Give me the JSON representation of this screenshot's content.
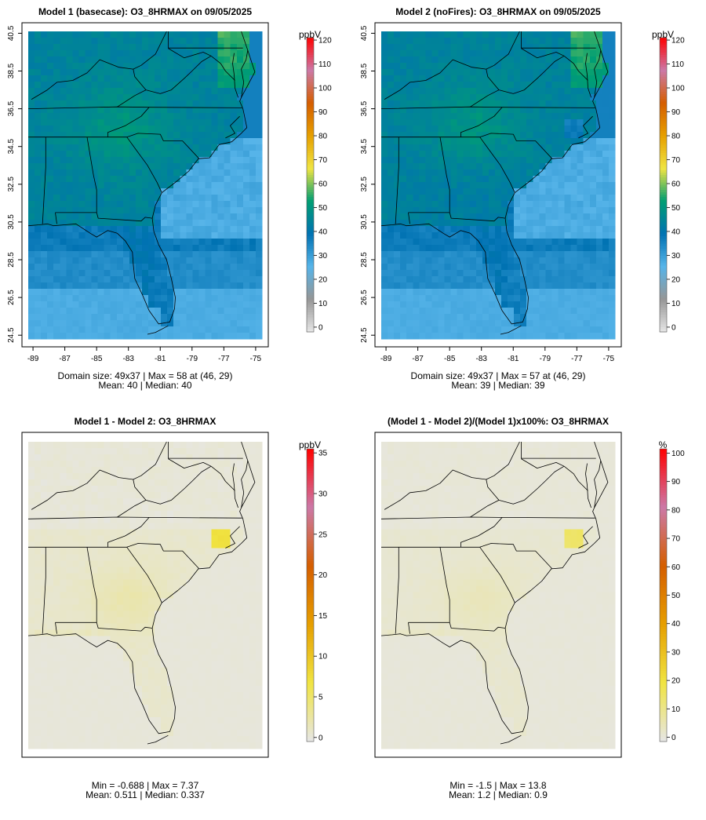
{
  "chart_data": [
    {
      "type": "heatmap",
      "title": "Model 1 (basecase): O3_8HRMAX on 09/05/2025",
      "x_ticks": [
        "-89",
        "-87",
        "-85",
        "-83",
        "-81",
        "-79",
        "-77",
        "-75"
      ],
      "y_ticks": [
        "24.5",
        "26.5",
        "28.5",
        "30.5",
        "32.5",
        "34.5",
        "36.5",
        "38.5",
        "40.5"
      ],
      "xlim": [
        -89.3,
        -74.6
      ],
      "ylim": [
        24.3,
        40.6
      ],
      "colorbar": {
        "unit": "ppbV",
        "range": [
          -2,
          121
        ],
        "ticks": [
          "0",
          "10",
          "20",
          "30",
          "40",
          "50",
          "60",
          "70",
          "80",
          "90",
          "100",
          "110",
          "120"
        ]
      },
      "palette": [
        "#e6e6e6",
        "#969696",
        "#56b4e9",
        "#0072b2",
        "#009e73",
        "#f0e442",
        "#e69f00",
        "#d55e00",
        "#cc79a7",
        "#ff0000"
      ],
      "field": "base",
      "caption": [
        "Domain size: 49x37 | Max = 58 at (46, 29)",
        "Mean: 40 |  Median: 40"
      ]
    },
    {
      "type": "heatmap",
      "title": "Model 2 (noFires): O3_8HRMAX on 09/05/2025",
      "x_ticks": [
        "-89",
        "-87",
        "-85",
        "-83",
        "-81",
        "-79",
        "-77",
        "-75"
      ],
      "y_ticks": [
        "24.5",
        "26.5",
        "28.5",
        "30.5",
        "32.5",
        "34.5",
        "36.5",
        "38.5",
        "40.5"
      ],
      "xlim": [
        -89.3,
        -74.6
      ],
      "ylim": [
        24.3,
        40.6
      ],
      "colorbar": {
        "unit": "ppbV",
        "range": [
          -2,
          121
        ],
        "ticks": [
          "0",
          "10",
          "20",
          "30",
          "40",
          "50",
          "60",
          "70",
          "80",
          "90",
          "100",
          "110",
          "120"
        ]
      },
      "palette": [
        "#e6e6e6",
        "#969696",
        "#56b4e9",
        "#0072b2",
        "#009e73",
        "#f0e442",
        "#e69f00",
        "#d55e00",
        "#cc79a7",
        "#ff0000"
      ],
      "field": "nofire",
      "caption": [
        "Domain size: 49x37 | Max = 57 at (46, 29)",
        "Mean: 39 |  Median: 39"
      ]
    },
    {
      "type": "heatmap",
      "title": "Model 1 - Model 2: O3_8HRMAX",
      "x_ticks": [],
      "y_ticks": [],
      "xlim": [
        -89.3,
        -74.6
      ],
      "ylim": [
        24.3,
        40.6
      ],
      "colorbar": {
        "unit": "ppbV",
        "range": [
          -0.5,
          35.5
        ],
        "ticks": [
          "0",
          "5",
          "10",
          "15",
          "20",
          "25",
          "30",
          "35"
        ]
      },
      "palette": [
        "#e6e6e6",
        "#f0e442",
        "#e69f00",
        "#d55e00",
        "#cc79a7",
        "#ff0000"
      ],
      "field": "diff",
      "caption": [
        "Min = -0.688 | Max = 7.37",
        "Mean: 0.511 |  Median: 0.337"
      ]
    },
    {
      "type": "heatmap",
      "title": "(Model 1 - Model 2)/(Model 1)x100%: O3_8HRMAX",
      "x_ticks": [],
      "y_ticks": [],
      "xlim": [
        -89.3,
        -74.6
      ],
      "ylim": [
        24.3,
        40.6
      ],
      "colorbar": {
        "unit": "%",
        "range": [
          -1.5,
          101.5
        ],
        "ticks": [
          "0",
          "10",
          "20",
          "30",
          "40",
          "50",
          "60",
          "70",
          "80",
          "90",
          "100"
        ]
      },
      "palette": [
        "#e6e6e6",
        "#f0e442",
        "#e69f00",
        "#d55e00",
        "#cc79a7",
        "#ff0000"
      ],
      "field": "pct",
      "caption": [
        "Min = -1.5 | Max = 13.8",
        "Mean: 1.2 |  Median: 0.9"
      ]
    }
  ],
  "map_lines": [
    {
      "name": "coastline",
      "coords": [
        [
          -75.9,
          40.6
        ],
        [
          -75.5,
          39.6
        ],
        [
          -75.05,
          38.45
        ],
        [
          -75.9,
          37.1
        ],
        [
          -76.0,
          36.9
        ],
        [
          -75.8,
          36.5
        ],
        [
          -75.55,
          35.5
        ],
        [
          -75.9,
          35.2
        ],
        [
          -76.5,
          34.75
        ],
        [
          -77.3,
          34.6
        ],
        [
          -77.9,
          33.9
        ],
        [
          -78.6,
          33.85
        ],
        [
          -79.2,
          33.2
        ],
        [
          -79.9,
          32.7
        ],
        [
          -80.9,
          32.05
        ],
        [
          -81.3,
          31.4
        ],
        [
          -81.5,
          30.7
        ],
        [
          -81.4,
          30.0
        ],
        [
          -81.1,
          29.3
        ],
        [
          -80.6,
          28.5
        ],
        [
          -80.3,
          27.5
        ],
        [
          -80.05,
          26.5
        ],
        [
          -80.1,
          25.9
        ],
        [
          -80.4,
          25.2
        ],
        [
          -81.1,
          25.1
        ],
        [
          -81.7,
          25.8
        ],
        [
          -82.1,
          26.6
        ],
        [
          -82.6,
          27.5
        ],
        [
          -82.7,
          28.3
        ],
        [
          -82.75,
          28.9
        ],
        [
          -83.2,
          29.5
        ],
        [
          -83.7,
          29.9
        ],
        [
          -84.3,
          30.05
        ],
        [
          -85.0,
          29.7
        ],
        [
          -85.4,
          29.9
        ],
        [
          -86.3,
          30.4
        ],
        [
          -87.0,
          30.35
        ],
        [
          -87.7,
          30.3
        ],
        [
          -88.1,
          30.4
        ],
        [
          -88.6,
          30.35
        ],
        [
          -89.3,
          30.3
        ]
      ]
    },
    {
      "name": "chesapeake-bay",
      "coords": [
        [
          -76.35,
          39.45
        ],
        [
          -76.45,
          38.9
        ],
        [
          -76.35,
          38.3
        ],
        [
          -76.3,
          37.6
        ],
        [
          -76.1,
          37.1
        ]
      ]
    },
    {
      "name": "delmarva-bay-shore",
      "coords": [
        [
          -75.9,
          37.1
        ],
        [
          -75.75,
          37.9
        ],
        [
          -75.9,
          38.6
        ],
        [
          -75.6,
          39.1
        ],
        [
          -75.5,
          39.6
        ]
      ]
    },
    {
      "name": "pamlico-sound",
      "coords": [
        [
          -76.0,
          36.1
        ],
        [
          -76.6,
          35.6
        ],
        [
          -76.3,
          35.2
        ],
        [
          -76.9,
          34.95
        ]
      ]
    },
    {
      "name": "potomac-border",
      "coords": [
        [
          -77.8,
          39.3
        ],
        [
          -77.2,
          38.9
        ],
        [
          -76.9,
          38.5
        ],
        [
          -76.3,
          38.0
        ]
      ]
    },
    {
      "name": "va-nc-tn-border",
      "coords": [
        [
          -75.85,
          36.55
        ],
        [
          -81.7,
          36.58
        ],
        [
          -83.7,
          36.6
        ],
        [
          -89.3,
          36.5
        ]
      ]
    },
    {
      "name": "va-ky-border",
      "coords": [
        [
          -83.7,
          36.6
        ],
        [
          -82.6,
          37.2
        ],
        [
          -81.9,
          37.5
        ]
      ]
    },
    {
      "name": "wv-ky-border",
      "coords": [
        [
          -81.9,
          37.5
        ],
        [
          -82.6,
          38.2
        ],
        [
          -82.7,
          38.6
        ]
      ]
    },
    {
      "name": "va-wv-border",
      "coords": [
        [
          -77.8,
          39.3
        ],
        [
          -78.4,
          39.0
        ],
        [
          -79.0,
          38.5
        ],
        [
          -79.5,
          38.1
        ],
        [
          -80.3,
          37.5
        ],
        [
          -81.0,
          37.3
        ],
        [
          -81.9,
          37.5
        ]
      ]
    },
    {
      "name": "ohio-river",
      "coords": [
        [
          -80.6,
          40.6
        ],
        [
          -81.3,
          39.4
        ],
        [
          -82.2,
          38.8
        ],
        [
          -82.7,
          38.6
        ],
        [
          -83.6,
          38.7
        ],
        [
          -84.8,
          39.1
        ],
        [
          -85.6,
          38.4
        ],
        [
          -86.5,
          38.0
        ],
        [
          -87.5,
          37.9
        ],
        [
          -88.1,
          37.5
        ],
        [
          -89.1,
          37.0
        ]
      ]
    },
    {
      "name": "wv-md-border",
      "coords": [
        [
          -80.5,
          39.7
        ],
        [
          -79.5,
          39.2
        ],
        [
          -78.3,
          39.5
        ],
        [
          -77.8,
          39.3
        ]
      ]
    },
    {
      "name": "md-pa-border",
      "coords": [
        [
          -80.5,
          39.72
        ],
        [
          -75.8,
          39.72
        ]
      ]
    },
    {
      "name": "wv-pa-border",
      "coords": [
        [
          -80.5,
          39.72
        ],
        [
          -80.5,
          40.6
        ]
      ]
    },
    {
      "name": "tn-ga-al-border",
      "coords": [
        [
          -89.3,
          35.0
        ],
        [
          -85.6,
          35.0
        ],
        [
          -83.1,
          35.0
        ],
        [
          -82.4,
          35.2
        ],
        [
          -81.0,
          35.15
        ],
        [
          -80.8,
          34.8
        ],
        [
          -79.6,
          34.8
        ],
        [
          -78.55,
          33.85
        ]
      ]
    },
    {
      "name": "nc-tn-border",
      "coords": [
        [
          -81.7,
          36.58
        ],
        [
          -82.2,
          36.1
        ],
        [
          -83.2,
          35.6
        ],
        [
          -84.3,
          35.25
        ],
        [
          -84.3,
          35.0
        ]
      ]
    },
    {
      "name": "ga-sc-border",
      "coords": [
        [
          -83.1,
          35.0
        ],
        [
          -82.5,
          34.3
        ],
        [
          -81.8,
          33.5
        ],
        [
          -81.2,
          32.6
        ],
        [
          -80.9,
          32.05
        ]
      ]
    },
    {
      "name": "al-ms-border",
      "coords": [
        [
          -88.2,
          35.0
        ],
        [
          -88.2,
          33.4
        ],
        [
          -88.4,
          30.4
        ]
      ]
    },
    {
      "name": "al-ga-border",
      "coords": [
        [
          -85.6,
          35.0
        ],
        [
          -85.2,
          33.0
        ],
        [
          -85.0,
          32.2
        ],
        [
          -85.0,
          31.0
        ]
      ]
    },
    {
      "name": "fl-northern-border",
      "coords": [
        [
          -87.6,
          31.0
        ],
        [
          -85.0,
          31.0
        ],
        [
          -84.9,
          30.7
        ],
        [
          -82.2,
          30.55
        ],
        [
          -81.95,
          30.75
        ],
        [
          -81.5,
          30.7
        ]
      ]
    },
    {
      "name": "fl-al-panhandle-border",
      "coords": [
        [
          -87.6,
          31.0
        ],
        [
          -87.5,
          30.4
        ]
      ]
    },
    {
      "name": "florida-keys",
      "coords": [
        [
          -80.5,
          25.0
        ],
        [
          -81.3,
          24.65
        ],
        [
          -81.8,
          24.55
        ]
      ]
    }
  ]
}
